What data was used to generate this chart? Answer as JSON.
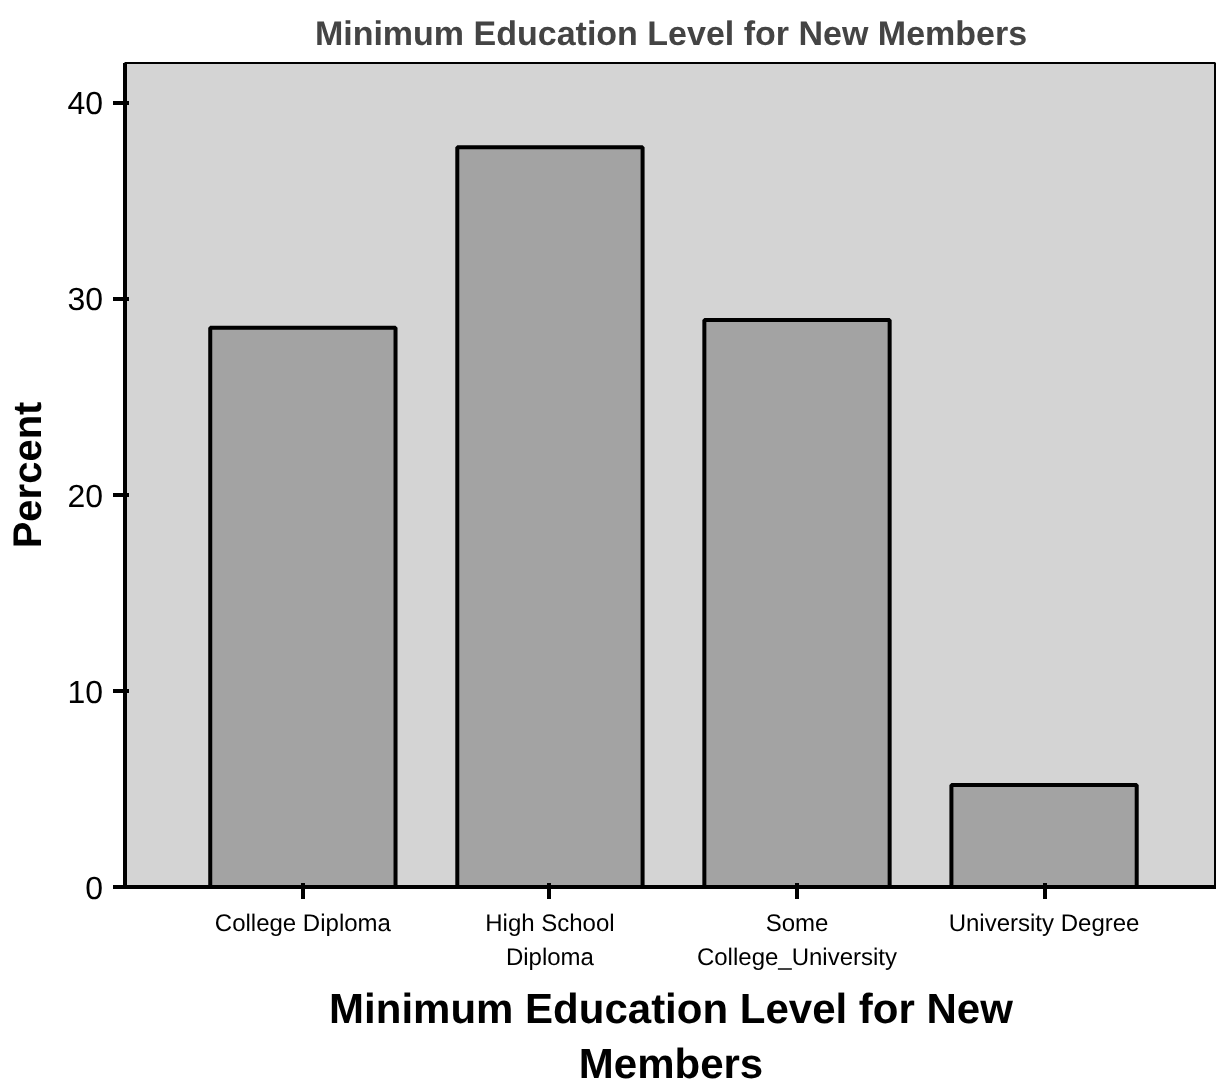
{
  "chart_data": {
    "type": "bar",
    "title": "Minimum Education Level for New Members",
    "xlabel": "Minimum Education Level for New\nMembers",
    "ylabel": "Percent",
    "categories": [
      "College Diploma",
      "High School\nDiploma",
      "Some\nCollege_University",
      "University Degree"
    ],
    "values": [
      28.5,
      37.7,
      28.9,
      5.2
    ],
    "color": "#a3a3a3",
    "ylim": [
      0,
      42
    ],
    "yticks": [
      0,
      10,
      20,
      30,
      40
    ],
    "grid": false
  }
}
